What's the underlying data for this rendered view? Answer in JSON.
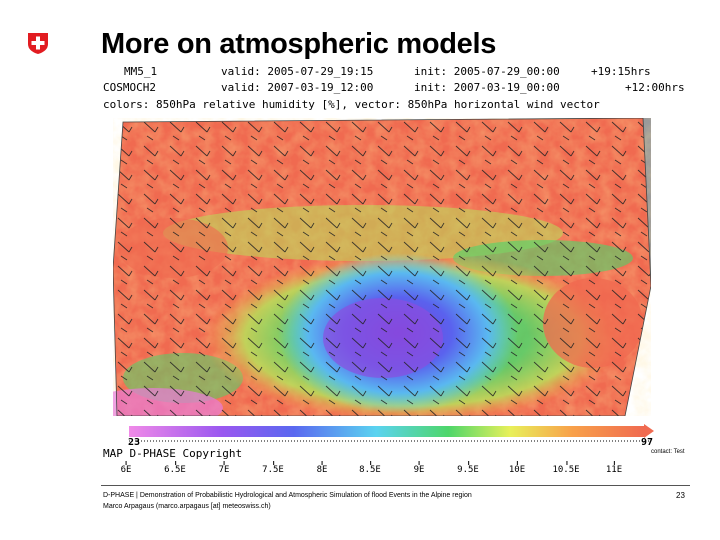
{
  "slide": {
    "title": "More on atmospheric models",
    "page_number": "23"
  },
  "model_header": {
    "row1_model": "MM5_1",
    "row1_valid": "valid: 2005-07-29_19:15",
    "row1_init": "init: 2005-07-29_00:00",
    "row1_lead": "+19:15hrs",
    "row2_model": "COSMOCH2",
    "row2_valid": "valid: 2007-03-19_12:00",
    "row2_init": "init: 2007-03-19_00:00",
    "row2_lead": "+12:00hrs",
    "row3_colors": "colors: 850hPa relative humidity [%], vector: 850hPa horizontal wind vector"
  },
  "map": {
    "label": "MAP D-PHASE Copyright",
    "contact": "contact: Test",
    "colorbar_ends": [
      "23",
      "97"
    ],
    "colors": {
      "dry": "#f06a50",
      "orange": "#f8a14a",
      "green": "#4ed66a",
      "cyan": "#5ad3f0",
      "blue": "#5a78f0",
      "purple": "#8a4ee0",
      "grey": "#9a9a9a"
    }
  },
  "axis_ticks": [
    "6E",
    "6.5E",
    "7E",
    "7.5E",
    "8E",
    "8.5E",
    "9E",
    "9.5E",
    "10E",
    "10.5E",
    "11E"
  ],
  "footer": {
    "line1": "D-PHASE | Demonstration of Probabilistic Hydrological and Atmospheric Simulation of flood Events in the Alpine region",
    "line2": "Marco Arpagaus (marco.arpagaus [at] meteoswiss.ch)"
  }
}
